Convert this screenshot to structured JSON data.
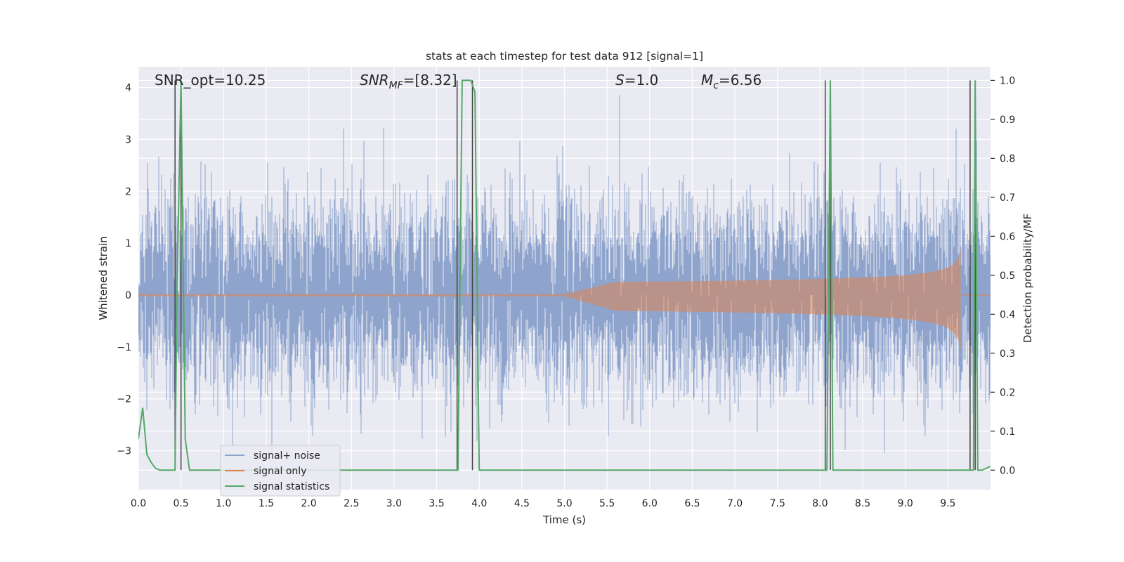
{
  "chart_data": {
    "type": "line",
    "title": "stats at each timestep for test data 912 [signal=1]",
    "xlabel": "Time (s)",
    "ylabel_left": "Whitened strain",
    "ylabel_right": "Detection probability/MF",
    "xlim": [
      0.0,
      10.0
    ],
    "ylim_left": [
      -3.75,
      4.4
    ],
    "ylim_right": [
      -0.05,
      1.035
    ],
    "x_ticks": [
      "0.0",
      "0.5",
      "1.0",
      "1.5",
      "2.0",
      "2.5",
      "3.0",
      "3.5",
      "4.0",
      "4.5",
      "5.0",
      "5.5",
      "6.0",
      "6.5",
      "7.0",
      "7.5",
      "8.0",
      "8.5",
      "9.0",
      "9.5"
    ],
    "y_left_ticks": [
      "−3",
      "−2",
      "−1",
      "0",
      "1",
      "2",
      "3",
      "4"
    ],
    "y_right_ticks": [
      "0.0",
      "0.1",
      "0.2",
      "0.3",
      "0.4",
      "0.5",
      "0.6",
      "0.7",
      "0.8",
      "0.9",
      "1.0"
    ],
    "grid": true,
    "legend_position": "lower-left",
    "annotations": [
      {
        "parts": [
          [
            "SNR_opt=10.25",
            false
          ]
        ]
      },
      {
        "parts": [
          [
            "SNR",
            true
          ],
          [
            "MF",
            true,
            "sub"
          ],
          [
            "=[8.32]",
            false
          ]
        ]
      },
      {
        "parts": [
          [
            "S",
            true
          ],
          [
            "=1.0",
            false
          ]
        ]
      },
      {
        "parts": [
          [
            "M",
            true
          ],
          [
            "c",
            true,
            "sub"
          ],
          [
            "=6.56",
            false
          ]
        ]
      }
    ],
    "series": [
      {
        "name": "signal+ noise",
        "color": "#8fa4cd",
        "axis": "left",
        "description": "whitened noisy strain, roughly Gaussian, std ~0.9, peaks ~±3.5",
        "envelope_seed": 912,
        "std": 0.9
      },
      {
        "name": "signal only",
        "color": "#dd8452",
        "axis": "left",
        "chirp": {
          "start": 5.0,
          "merger": 9.65,
          "peak_amplitude": 0.9,
          "floor_amplitude": 0.02
        }
      },
      {
        "name": "signal statistics",
        "color": "#55a868",
        "axis": "right",
        "x": [
          0.0,
          0.05,
          0.1,
          0.15,
          0.2,
          0.25,
          0.3,
          0.35,
          0.4,
          0.43,
          0.45,
          0.5,
          0.55,
          0.6,
          0.65,
          0.7,
          1.0,
          1.5,
          2.0,
          2.5,
          3.0,
          3.5,
          3.7,
          3.75,
          3.8,
          3.85,
          3.9,
          3.95,
          4.0,
          4.5,
          5.0,
          5.5,
          6.0,
          6.5,
          7.0,
          7.5,
          8.0,
          8.05,
          8.08,
          8.12,
          8.15,
          8.2,
          8.5,
          9.0,
          9.5,
          9.75,
          9.8,
          9.82,
          9.85,
          9.9,
          9.95,
          10.0
        ],
        "values": [
          0.08,
          0.16,
          0.04,
          0.02,
          0.005,
          0.0,
          0.0,
          0.0,
          0.0,
          0.0,
          0.42,
          1.0,
          0.08,
          0.0,
          0.0,
          0.0,
          0.0,
          0.0,
          0.0,
          0.0,
          0.0,
          0.0,
          0.0,
          0.0,
          1.0,
          1.0,
          1.0,
          0.97,
          0.0,
          0.0,
          0.0,
          0.0,
          0.0,
          0.0,
          0.0,
          0.0,
          0.0,
          0.0,
          0.0,
          1.0,
          0.0,
          0.0,
          0.0,
          0.0,
          0.0,
          0.0,
          0.0,
          1.0,
          0.0,
          0.0,
          0.005,
          0.01
        ]
      }
    ],
    "vlines": {
      "color": "#444444",
      "x": [
        0.43,
        0.5,
        3.74,
        3.92,
        8.06,
        8.12,
        9.76,
        9.82
      ]
    }
  },
  "colors": {
    "plot_background": "#eaeaf2",
    "grid": "#ffffff",
    "legend_border": "#cccccc",
    "legend_background": "#eaeaf2"
  }
}
